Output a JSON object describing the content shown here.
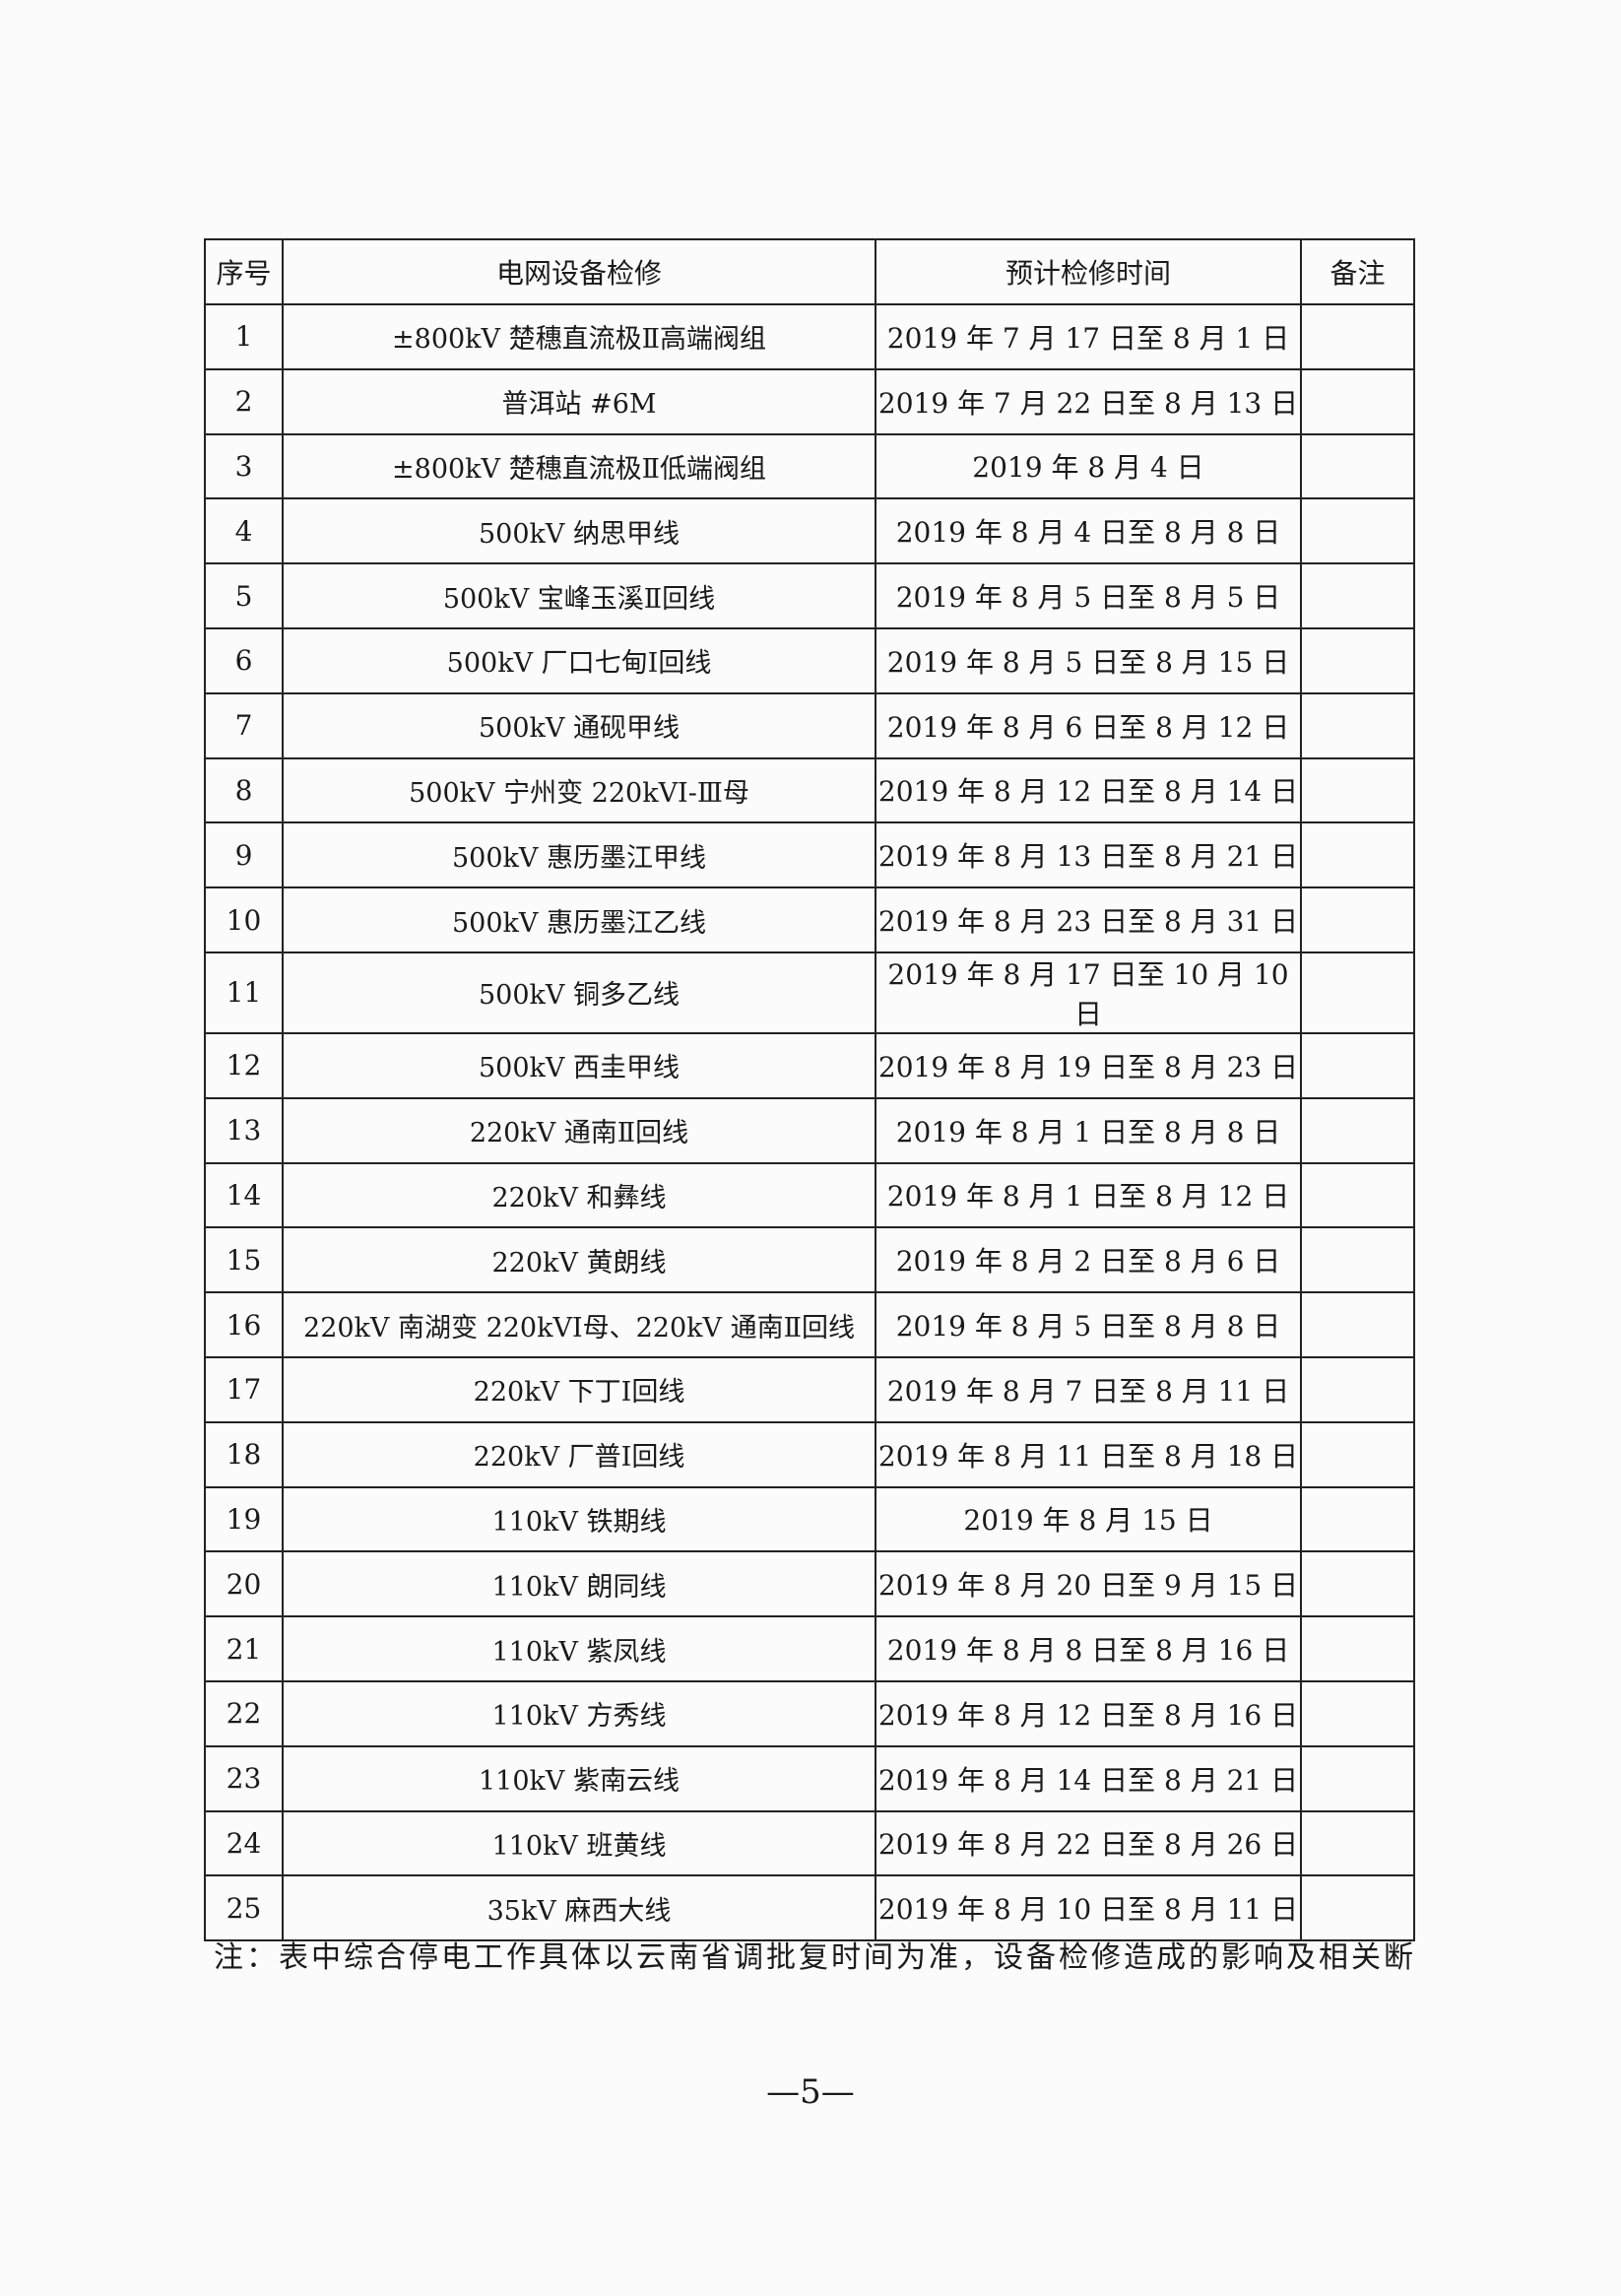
{
  "table": {
    "headers": [
      "序号",
      "电网设备检修",
      "预计检修时间",
      "备注"
    ],
    "rows": [
      {
        "no": "1",
        "equipment": "±800kV 楚穗直流极Ⅱ高端阀组",
        "time": "2019 年 7 月 17 日至 8 月 1 日",
        "remark": ""
      },
      {
        "no": "2",
        "equipment": "普洱站 #6M",
        "time": "2019 年 7 月 22 日至 8 月 13 日",
        "remark": ""
      },
      {
        "no": "3",
        "equipment": "±800kV 楚穗直流极Ⅱ低端阀组",
        "time": "2019 年 8 月 4 日",
        "remark": ""
      },
      {
        "no": "4",
        "equipment": "500kV 纳思甲线",
        "time": "2019 年 8 月 4 日至 8 月 8 日",
        "remark": ""
      },
      {
        "no": "5",
        "equipment": "500kV 宝峰玉溪Ⅱ回线",
        "time": "2019 年 8 月 5 日至 8 月 5 日",
        "remark": ""
      },
      {
        "no": "6",
        "equipment": "500kV 厂口七甸Ⅰ回线",
        "time": "2019 年 8 月 5 日至 8 月 15 日",
        "remark": ""
      },
      {
        "no": "7",
        "equipment": "500kV 通砚甲线",
        "time": "2019 年 8 月 6 日至 8 月 12 日",
        "remark": ""
      },
      {
        "no": "8",
        "equipment": "500kV 宁州变 220kVⅠ-Ⅲ母",
        "time": "2019 年 8 月 12 日至 8 月 14 日",
        "remark": ""
      },
      {
        "no": "9",
        "equipment": "500kV 惠历墨江甲线",
        "time": "2019 年 8 月 13 日至 8 月 21 日",
        "remark": ""
      },
      {
        "no": "10",
        "equipment": "500kV 惠历墨江乙线",
        "time": "2019 年 8 月 23 日至 8 月 31 日",
        "remark": ""
      },
      {
        "no": "11",
        "equipment": "500kV 铜多乙线",
        "time": "2019 年 8 月 17 日至 10 月 10 日",
        "remark": ""
      },
      {
        "no": "12",
        "equipment": "500kV 西圭甲线",
        "time": "2019 年 8 月 19 日至 8 月 23 日",
        "remark": ""
      },
      {
        "no": "13",
        "equipment": "220kV 通南Ⅱ回线",
        "time": "2019 年 8 月 1 日至 8 月 8 日",
        "remark": ""
      },
      {
        "no": "14",
        "equipment": "220kV 和彝线",
        "time": "2019 年 8 月 1 日至 8 月 12 日",
        "remark": ""
      },
      {
        "no": "15",
        "equipment": "220kV 黄朗线",
        "time": "2019 年 8 月 2 日至 8 月 6 日",
        "remark": ""
      },
      {
        "no": "16",
        "equipment": "220kV 南湖变 220kVⅠ母、220kV 通南Ⅱ回线",
        "time": "2019 年 8 月 5 日至 8 月 8 日",
        "remark": ""
      },
      {
        "no": "17",
        "equipment": "220kV 下丁Ⅰ回线",
        "time": "2019 年 8 月 7 日至 8 月 11 日",
        "remark": ""
      },
      {
        "no": "18",
        "equipment": "220kV 厂普Ⅰ回线",
        "time": "2019 年 8 月 11 日至 8 月 18 日",
        "remark": ""
      },
      {
        "no": "19",
        "equipment": "110kV 铁期线",
        "time": "2019 年 8 月 15 日",
        "remark": ""
      },
      {
        "no": "20",
        "equipment": "110kV 朗同线",
        "time": "2019 年 8 月 20 日至 9 月 15 日",
        "remark": ""
      },
      {
        "no": "21",
        "equipment": "110kV 紫凤线",
        "time": "2019 年 8 月 8 日至 8 月 16 日",
        "remark": ""
      },
      {
        "no": "22",
        "equipment": "110kV 方秀线",
        "time": "2019 年 8 月 12 日至 8 月 16 日",
        "remark": ""
      },
      {
        "no": "23",
        "equipment": "110kV 紫南云线",
        "time": "2019 年 8 月 14 日至 8 月 21 日",
        "remark": ""
      },
      {
        "no": "24",
        "equipment": "110kV 班黄线",
        "time": "2019 年 8 月 22 日至 8 月 26 日",
        "remark": ""
      },
      {
        "no": "25",
        "equipment": "35kV 麻西大线",
        "time": "2019 年 8 月 10 日至 8 月 11 日",
        "remark": ""
      }
    ]
  },
  "note": "注：表中综合停电工作具体以云南省调批复时间为准，设备检修造成的影响及相关断",
  "page_number": "—5—"
}
